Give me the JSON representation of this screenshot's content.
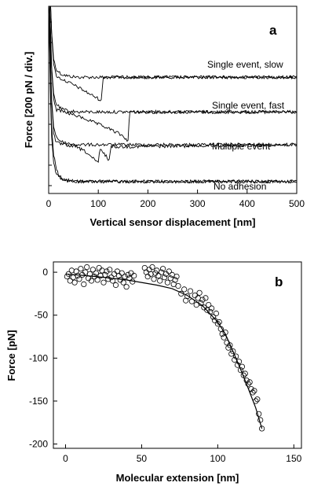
{
  "chart_data": [
    {
      "type": "line",
      "panel_label": "a",
      "xlabel": "Vertical sensor displacement [nm]",
      "ylabel": "Force [200 pN / div.]",
      "xlim": [
        0,
        500
      ],
      "xticks": [
        "0",
        "100",
        "200",
        "300",
        "400",
        "500"
      ],
      "grid": false,
      "series": [
        {
          "name": "Single event, slow",
          "offset_div": 5.3,
          "approach": [
            [
              0,
              9
            ],
            [
              5,
              2.5
            ],
            [
              10,
              0.9
            ],
            [
              15,
              0.4
            ],
            [
              25,
              0.15
            ],
            [
              40,
              0.05
            ],
            [
              60,
              0
            ],
            [
              500,
              0
            ]
          ],
          "retract": [
            [
              0,
              9
            ],
            [
              5,
              2.5
            ],
            [
              10,
              0.6
            ],
            [
              15,
              0.1
            ],
            [
              20,
              -0.02
            ],
            [
              40,
              -0.25
            ],
            [
              60,
              -0.5
            ],
            [
              80,
              -0.78
            ],
            [
              100,
              -1.05
            ],
            [
              107,
              -1.15
            ],
            [
              109,
              0
            ],
            [
              500,
              0
            ]
          ]
        },
        {
          "name": "Single event, fast",
          "offset_div": 3.6,
          "approach": [
            [
              0,
              9
            ],
            [
              5,
              2.5
            ],
            [
              10,
              0.9
            ],
            [
              15,
              0.4
            ],
            [
              25,
              0.15
            ],
            [
              40,
              0.05
            ],
            [
              60,
              0
            ],
            [
              500,
              0
            ]
          ],
          "retract": [
            [
              0,
              9
            ],
            [
              5,
              2.5
            ],
            [
              10,
              0.6
            ],
            [
              15,
              0.1
            ],
            [
              25,
              0.05
            ],
            [
              45,
              -0.1
            ],
            [
              70,
              -0.3
            ],
            [
              95,
              -0.55
            ],
            [
              120,
              -0.8
            ],
            [
              145,
              -1.1
            ],
            [
              160,
              -1.4
            ],
            [
              163,
              0
            ],
            [
              500,
              0
            ]
          ]
        },
        {
          "name": "Multiple event",
          "offset_div": 2.0,
          "approach": [
            [
              0,
              9
            ],
            [
              5,
              2.5
            ],
            [
              10,
              0.9
            ],
            [
              15,
              0.4
            ],
            [
              25,
              0.15
            ],
            [
              40,
              0.05
            ],
            [
              60,
              0
            ],
            [
              500,
              0
            ]
          ],
          "retract": [
            [
              0,
              9
            ],
            [
              5,
              2.5
            ],
            [
              10,
              0.6
            ],
            [
              15,
              0.1
            ],
            [
              30,
              0
            ],
            [
              55,
              -0.1
            ],
            [
              75,
              -0.35
            ],
            [
              95,
              -0.8
            ],
            [
              100,
              -0.9
            ],
            [
              103,
              -0.2
            ],
            [
              112,
              -0.45
            ],
            [
              122,
              -0.75
            ],
            [
              125,
              -0.1
            ],
            [
              500,
              0
            ]
          ]
        },
        {
          "name": "No adhesion",
          "offset_div": 0.2,
          "approach": [
            [
              0,
              9
            ],
            [
              5,
              2.5
            ],
            [
              10,
              0.9
            ],
            [
              15,
              0.4
            ],
            [
              25,
              0.15
            ],
            [
              40,
              0.05
            ],
            [
              60,
              0
            ],
            [
              500,
              0
            ]
          ],
          "retract": [
            [
              0,
              9
            ],
            [
              5,
              3
            ],
            [
              10,
              1.3
            ],
            [
              15,
              0.7
            ],
            [
              20,
              0.3
            ],
            [
              30,
              0.08
            ],
            [
              45,
              0
            ],
            [
              500,
              0
            ]
          ]
        }
      ]
    },
    {
      "type": "scatter",
      "panel_label": "b",
      "xlabel": "Molecular extension [nm]",
      "ylabel": "Force [pN]",
      "xlim": [
        -8,
        155
      ],
      "ylim": [
        -205,
        12
      ],
      "xticks": [
        0,
        50,
        100,
        150
      ],
      "yticks": [
        0,
        -50,
        -100,
        -150,
        -200
      ],
      "grid": false,
      "points": [
        [
          1,
          -5
        ],
        [
          2,
          -2
        ],
        [
          3,
          -10
        ],
        [
          4,
          2
        ],
        [
          5,
          -6
        ],
        [
          6,
          -12
        ],
        [
          7,
          1
        ],
        [
          8,
          -4
        ],
        [
          9,
          -8
        ],
        [
          10,
          4
        ],
        [
          11,
          -3
        ],
        [
          12,
          -14
        ],
        [
          13,
          0
        ],
        [
          14,
          6
        ],
        [
          15,
          -7
        ],
        [
          16,
          -2
        ],
        [
          17,
          -10
        ],
        [
          18,
          3
        ],
        [
          19,
          -5
        ],
        [
          20,
          -1
        ],
        [
          21,
          -9
        ],
        [
          22,
          5
        ],
        [
          23,
          -4
        ],
        [
          24,
          2
        ],
        [
          25,
          -12
        ],
        [
          26,
          -3
        ],
        [
          27,
          1
        ],
        [
          28,
          -8
        ],
        [
          29,
          3
        ],
        [
          30,
          -6
        ],
        [
          31,
          -10
        ],
        [
          32,
          -2
        ],
        [
          33,
          -15
        ],
        [
          34,
          1
        ],
        [
          35,
          -4
        ],
        [
          36,
          -9
        ],
        [
          37,
          -1
        ],
        [
          38,
          -12
        ],
        [
          39,
          -5
        ],
        [
          40,
          -17
        ],
        [
          41,
          -3
        ],
        [
          42,
          -7
        ],
        [
          43,
          -1
        ],
        [
          44,
          -11
        ],
        [
          45,
          -4
        ],
        [
          52,
          5
        ],
        [
          53,
          0
        ],
        [
          54,
          -5
        ],
        [
          55,
          3
        ],
        [
          56,
          -2
        ],
        [
          57,
          6
        ],
        [
          58,
          -8
        ],
        [
          59,
          -1
        ],
        [
          60,
          2
        ],
        [
          61,
          -4
        ],
        [
          62,
          -10
        ],
        [
          63,
          0
        ],
        [
          64,
          4
        ],
        [
          65,
          -6
        ],
        [
          66,
          -2
        ],
        [
          67,
          -12
        ],
        [
          68,
          1
        ],
        [
          69,
          -7
        ],
        [
          70,
          -3
        ],
        [
          71,
          -14
        ],
        [
          72,
          -9
        ],
        [
          73,
          -5
        ],
        [
          74,
          -16
        ],
        [
          76,
          -25
        ],
        [
          78,
          -20
        ],
        [
          79,
          -33
        ],
        [
          80,
          -28
        ],
        [
          82,
          -22
        ],
        [
          83,
          -34
        ],
        [
          85,
          -27
        ],
        [
          86,
          -38
        ],
        [
          87,
          -30
        ],
        [
          88,
          -24
        ],
        [
          89,
          -36
        ],
        [
          90,
          -32
        ],
        [
          91,
          -41
        ],
        [
          92,
          -30
        ],
        [
          93,
          -44
        ],
        [
          94,
          -38
        ],
        [
          95,
          -46
        ],
        [
          96,
          -42
        ],
        [
          97,
          -52
        ],
        [
          98,
          -56
        ],
        [
          99,
          -48
        ],
        [
          100,
          -60
        ],
        [
          101,
          -58
        ],
        [
          102,
          -66
        ],
        [
          103,
          -72
        ],
        [
          104,
          -76
        ],
        [
          105,
          -70
        ],
        [
          106,
          -82
        ],
        [
          107,
          -88
        ],
        [
          108,
          -85
        ],
        [
          109,
          -95
        ],
        [
          110,
          -92
        ],
        [
          111,
          -102
        ],
        [
          112,
          -98
        ],
        [
          113,
          -108
        ],
        [
          114,
          -104
        ],
        [
          115,
          -114
        ],
        [
          116,
          -110
        ],
        [
          117,
          -120
        ],
        [
          118,
          -118
        ],
        [
          119,
          -126
        ],
        [
          120,
          -130
        ],
        [
          121,
          -128
        ],
        [
          122,
          -136
        ],
        [
          123,
          -140
        ],
        [
          124,
          -138
        ],
        [
          125,
          -150
        ],
        [
          126,
          -148
        ],
        [
          127,
          -165
        ],
        [
          128,
          -172
        ],
        [
          129,
          -182
        ]
      ],
      "fit": [
        [
          0,
          -2
        ],
        [
          20,
          -5
        ],
        [
          40,
          -9
        ],
        [
          60,
          -15
        ],
        [
          70,
          -19
        ],
        [
          80,
          -27
        ],
        [
          90,
          -39
        ],
        [
          100,
          -58
        ],
        [
          105,
          -72
        ],
        [
          110,
          -92
        ],
        [
          115,
          -113
        ],
        [
          120,
          -135
        ],
        [
          125,
          -158
        ],
        [
          129,
          -182
        ]
      ]
    }
  ]
}
